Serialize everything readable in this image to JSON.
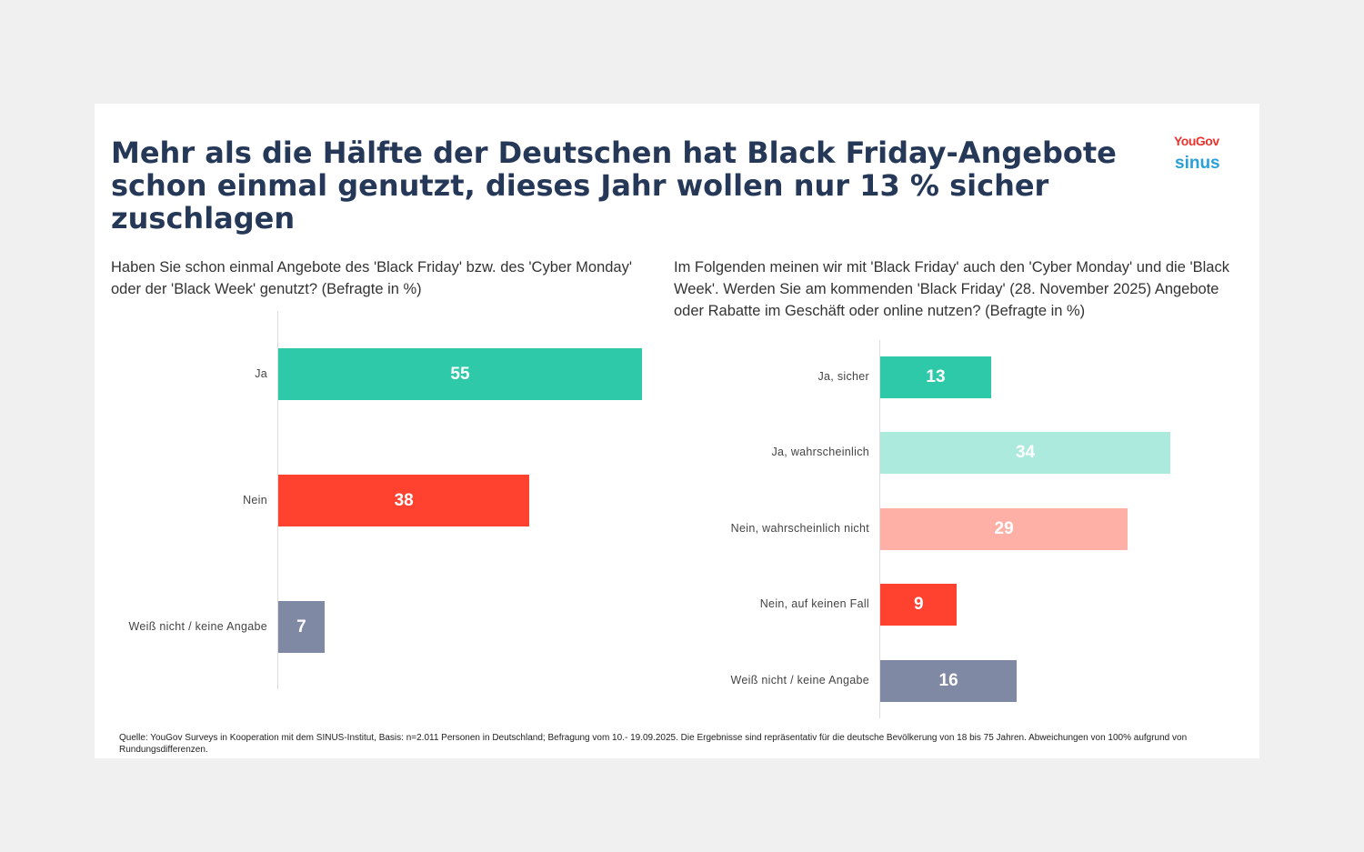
{
  "title": "Mehr als die Hälfte der Deutschen hat Black Friday-Angebote schon einmal genutzt, dieses Jahr wollen nur 13 % sicher zuschlagen",
  "logos": {
    "yougov": "YouGov",
    "sinus": "sinus"
  },
  "source": "Quelle: YouGov Surveys in Kooperation mit dem SINUS-Institut, Basis: n=2.011 Personen in Deutschland; Befragung vom 10.- 19.09.2025. Die Ergebnisse sind repräsentativ für die deutsche Bevölkerung von 18 bis 75 Jahren. Abweichungen von 100% aufgrund von Rundungsdifferenzen.",
  "chart_data": [
    {
      "type": "bar",
      "orientation": "horizontal",
      "title": "Haben Sie schon einmal Angebote des 'Black Friday' bzw. des 'Cyber Monday' oder der 'Black Week' genutzt? (Befragte in %)",
      "categories": [
        "Ja",
        "Nein",
        "Weiß nicht / keine Angabe"
      ],
      "values": [
        55,
        38,
        7
      ],
      "colors": [
        "#2ec9a8",
        "#ff4230",
        "#8089a3"
      ]
    },
    {
      "type": "bar",
      "orientation": "horizontal",
      "title": "Im Folgenden meinen wir mit 'Black Friday' auch den 'Cyber Monday' und die 'Black Week'. Werden Sie am kommenden 'Black Friday' (28. November 2025) Angebote oder Rabatte im Geschäft oder online nutzen? (Befragte in %)",
      "categories": [
        "Ja, sicher",
        "Ja, wahrscheinlich",
        "Nein, wahrscheinlich nicht",
        "Nein, auf keinen Fall",
        "Weiß nicht / keine Angabe"
      ],
      "values": [
        13,
        34,
        29,
        9,
        16
      ],
      "colors": [
        "#2ec9a8",
        "#abeadd",
        "#ffb0a6",
        "#ff4230",
        "#8089a3"
      ]
    }
  ]
}
